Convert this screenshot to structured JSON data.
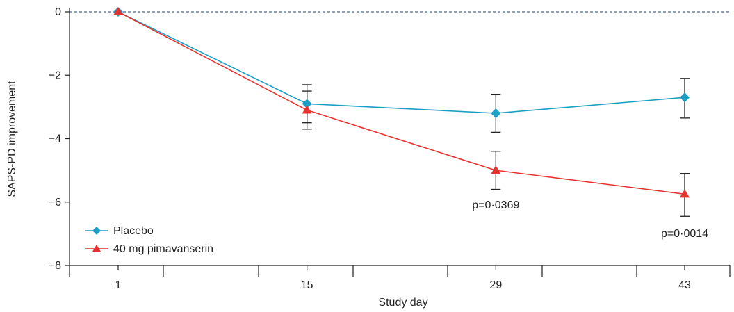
{
  "chart_data": {
    "type": "line",
    "xlabel": "Study day",
    "ylabel": "SAPS-PD improvement",
    "x": [
      1,
      15,
      29,
      43
    ],
    "x_tick_labels": [
      "1",
      "15",
      "29",
      "43"
    ],
    "ylim": [
      -8,
      0
    ],
    "y_ticks": [
      0,
      -2,
      -4,
      -6,
      -8
    ],
    "y_tick_labels": [
      "0",
      "−2",
      "−4",
      "−6",
      "−8"
    ],
    "reference_line": {
      "y": 0,
      "style": "dashed"
    },
    "series": [
      {
        "name": "Placebo",
        "color": "#1a9fc4",
        "marker": "diamond",
        "values": [
          0,
          -2.9,
          -3.2,
          -2.7
        ],
        "err_low": [
          0,
          -3.5,
          -3.8,
          -3.35
        ],
        "err_high": [
          0,
          -2.3,
          -2.6,
          -2.1
        ]
      },
      {
        "name": "40 mg pimavanserin",
        "color": "#e8322f",
        "marker": "triangle",
        "values": [
          0,
          -3.1,
          -5.0,
          -5.75
        ],
        "err_low": [
          0,
          -3.7,
          -5.6,
          -6.45
        ],
        "err_high": [
          0,
          -2.5,
          -4.4,
          -5.1
        ]
      }
    ],
    "annotations": [
      {
        "text": "p=0·0369",
        "x": 29,
        "y": -6.2
      },
      {
        "text": "p=0·0014",
        "x": 43,
        "y": -7.1
      }
    ],
    "legend_position": "bottom-left",
    "grid": false
  }
}
